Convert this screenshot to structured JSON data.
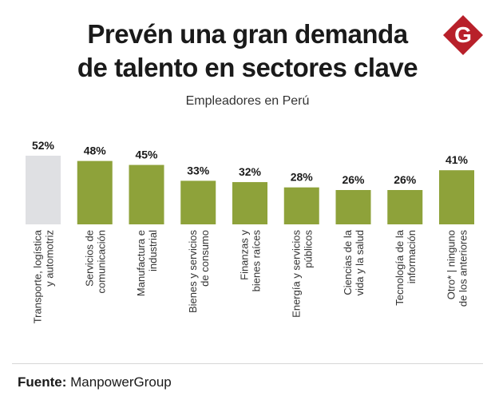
{
  "title_line1": "Prevén una gran demanda",
  "title_line2": "de talento en sectores clave",
  "subtitle": "Empleadores en Perú",
  "logo_letter": "G",
  "source_label": "Fuente:",
  "source_value": "ManpowerGroup",
  "colors": {
    "highlight_bar": "#dfe0e3",
    "bar": "#8ea23a",
    "logo": "#b8202a"
  },
  "chart_data": {
    "type": "bar",
    "title": "",
    "xlabel": "",
    "ylabel": "",
    "ylim": [
      0,
      52
    ],
    "grid": false,
    "categories": [
      [
        "Transporte, logística",
        "y automotriz"
      ],
      [
        "Servicios de",
        "comunicación"
      ],
      [
        "Manufactura e",
        "industrial"
      ],
      [
        "Bienes y servicios",
        "de consumo"
      ],
      [
        "Finanzas y",
        "bienes raíces"
      ],
      [
        "Energía y servicios",
        "públicos"
      ],
      [
        "Ciencias de la",
        "vida y la salud"
      ],
      [
        "Tecnología de la",
        "información"
      ],
      [
        "Otro* | ninguno",
        "de los anteriores"
      ]
    ],
    "values": [
      52,
      48,
      45,
      33,
      32,
      28,
      26,
      26,
      41
    ],
    "value_labels": [
      "52%",
      "48%",
      "45%",
      "33%",
      "32%",
      "28%",
      "26%",
      "26%",
      "41%"
    ],
    "highlight_index": 0
  }
}
